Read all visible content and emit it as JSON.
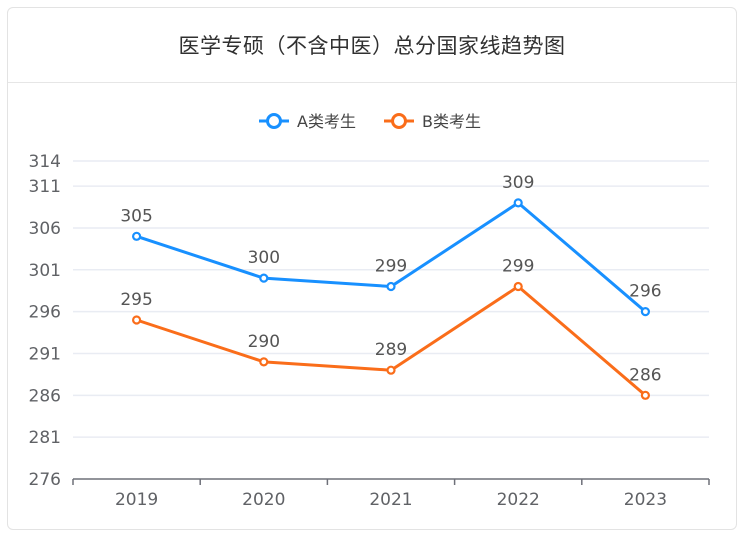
{
  "header": {
    "title": "医学专硕（不含中医）总分国家线趋势图"
  },
  "chart_data": {
    "type": "line",
    "title": "医学专硕（不含中医）总分国家线趋势图",
    "categories": [
      "2019",
      "2020",
      "2021",
      "2022",
      "2023"
    ],
    "y_ticks": [
      276,
      281,
      286,
      291,
      296,
      301,
      306,
      311,
      314
    ],
    "ylim": [
      276,
      314
    ],
    "grid": true,
    "legend_position": "top",
    "series": [
      {
        "name": "A类考生",
        "color": "#1890ff",
        "values": [
          305,
          300,
          299,
          309,
          296
        ]
      },
      {
        "name": "B类考生",
        "color": "#fa6d1a",
        "values": [
          295,
          290,
          289,
          299,
          286
        ]
      }
    ]
  }
}
